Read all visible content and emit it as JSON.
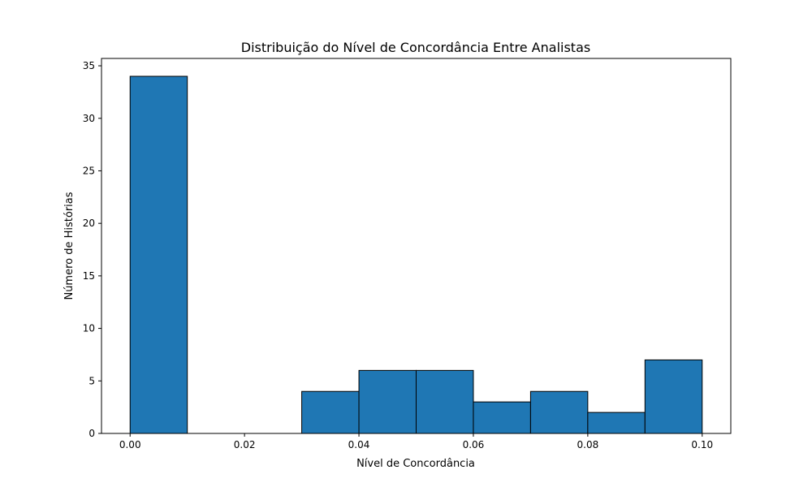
{
  "chart_data": {
    "type": "bar",
    "title": "Distribuição do Nível de Concordância Entre Analistas",
    "xlabel": "Nível de Concordância",
    "ylabel": "Número de Histórias",
    "bins": [
      {
        "x0": 0.0,
        "x1": 0.01,
        "count": 34
      },
      {
        "x0": 0.01,
        "x1": 0.02,
        "count": 0
      },
      {
        "x0": 0.02,
        "x1": 0.03,
        "count": 0
      },
      {
        "x0": 0.03,
        "x1": 0.04,
        "count": 4
      },
      {
        "x0": 0.04,
        "x1": 0.05,
        "count": 6
      },
      {
        "x0": 0.05,
        "x1": 0.06,
        "count": 6
      },
      {
        "x0": 0.06,
        "x1": 0.07,
        "count": 3
      },
      {
        "x0": 0.07,
        "x1": 0.08,
        "count": 4
      },
      {
        "x0": 0.08,
        "x1": 0.09,
        "count": 2
      },
      {
        "x0": 0.09,
        "x1": 0.1,
        "count": 7
      }
    ],
    "xlim": [
      -0.005,
      0.105
    ],
    "ylim": [
      0,
      35.7
    ],
    "xticks": [
      0.0,
      0.02,
      0.04,
      0.06,
      0.08,
      0.1
    ],
    "xtick_labels": [
      "0.00",
      "0.02",
      "0.04",
      "0.06",
      "0.08",
      "0.10"
    ],
    "yticks": [
      0,
      5,
      10,
      15,
      20,
      25,
      30,
      35
    ],
    "ytick_labels": [
      "0",
      "5",
      "10",
      "15",
      "20",
      "25",
      "30",
      "35"
    ],
    "grid": false,
    "colors": {
      "bar_fill": "#1f77b4",
      "bar_edge": "#000000"
    }
  }
}
